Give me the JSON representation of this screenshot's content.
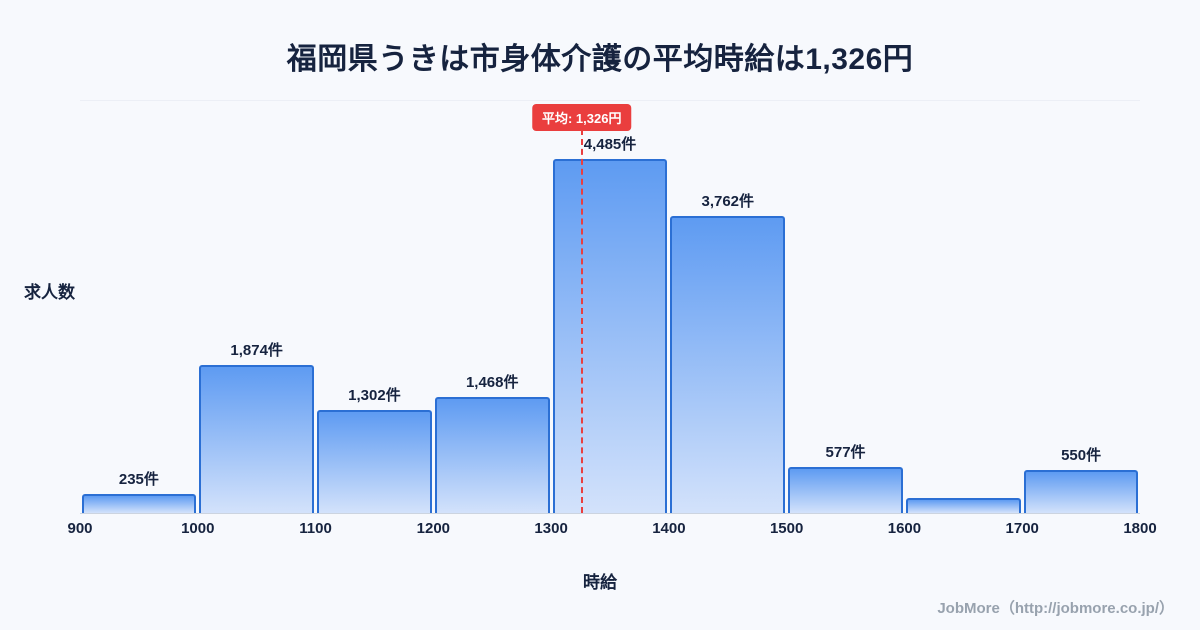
{
  "title": "福岡県うきは市身体介護の平均時給は1,326円",
  "chart_data": {
    "type": "bar",
    "title": "福岡県うきは市身体介護の平均時給は1,326円",
    "xlabel": "時給",
    "ylabel": "求人数",
    "xlim": [
      900,
      1800
    ],
    "ylim": [
      0,
      5220
    ],
    "x_ticks": [
      900,
      1000,
      1100,
      1200,
      1300,
      1400,
      1500,
      1600,
      1700,
      1800
    ],
    "grid": "off",
    "legend": "none",
    "bins": [
      {
        "from": 900,
        "to": 1000,
        "value": 235,
        "label": "235件"
      },
      {
        "from": 1000,
        "to": 1100,
        "value": 1874,
        "label": "1,874件"
      },
      {
        "from": 1100,
        "to": 1200,
        "value": 1302,
        "label": "1,302件"
      },
      {
        "from": 1200,
        "to": 1300,
        "value": 1468,
        "label": "1,468件"
      },
      {
        "from": 1300,
        "to": 1400,
        "value": 4485,
        "label": "4,485件"
      },
      {
        "from": 1400,
        "to": 1500,
        "value": 3762,
        "label": "3,762件"
      },
      {
        "from": 1500,
        "to": 1600,
        "value": 577,
        "label": "577件"
      },
      {
        "from": 1600,
        "to": 1700,
        "value": 190,
        "label": "",
        "estimated": true
      },
      {
        "from": 1700,
        "to": 1800,
        "value": 550,
        "label": "550件"
      }
    ],
    "average": {
      "value": 1326,
      "label": "平均: 1,326円"
    },
    "colors": {
      "bar_gradient_top": "#5e9bf2",
      "bar_gradient_bottom": "#d3e2fb",
      "bar_border": "#2b6fd4",
      "average_line": "#ea3e3e",
      "title_text": "#16233f",
      "background": "#f7f9fd"
    }
  },
  "footer": {
    "credit": "JobMore（http://jobmore.co.jp/）"
  }
}
